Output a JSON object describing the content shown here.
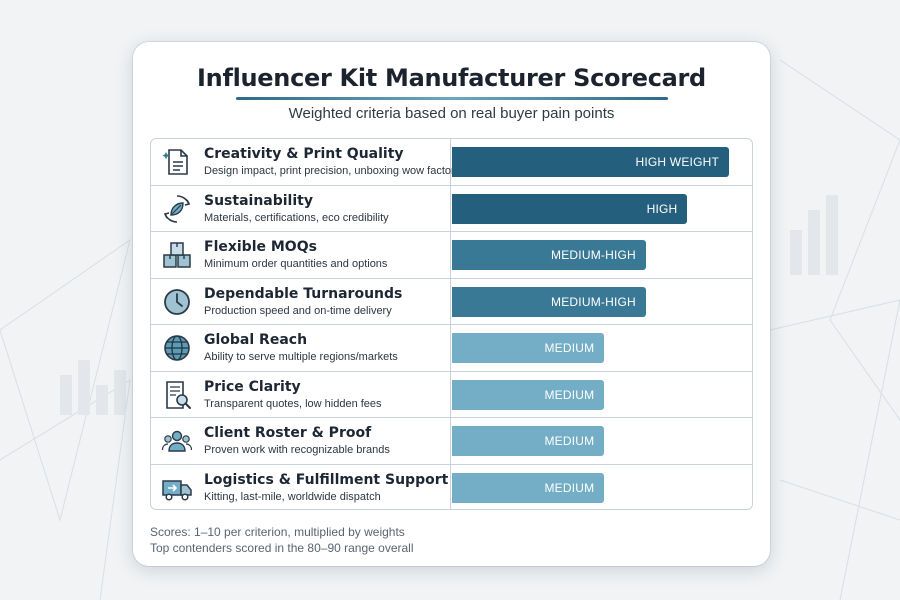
{
  "title": "Influencer Kit Manufacturer Scorecard",
  "subtitle": "Weighted criteria based on real buyer pain points",
  "colors": {
    "dark": "#245f7d",
    "mid": "#3a7995",
    "light": "#74aec6",
    "grid": "#c9d2da"
  },
  "chart_data": {
    "type": "bar",
    "orientation": "horizontal",
    "categories": [
      "Creativity & Print Quality",
      "Sustainability",
      "Flexible MOQs",
      "Dependable Turnarounds",
      "Global Reach",
      "Price Clarity",
      "Client Roster & Proof",
      "Logistics & Fulfillment Support"
    ],
    "descriptions": [
      "Design impact, print precision, unboxing wow factor",
      "Materials, certifications, eco credibility",
      "Minimum order quantities and options",
      "Production speed and on-time delivery",
      "Ability to serve multiple regions/markets",
      "Transparent quotes, low hidden fees",
      "Proven work with recognizable brands",
      "Kitting, last-mile, worldwide dispatch"
    ],
    "icons": [
      "document-sparkle-icon",
      "recycle-leaf-icon",
      "boxes-icon",
      "clock-icon",
      "globe-icon",
      "invoice-magnifier-icon",
      "people-group-icon",
      "delivery-truck-icon"
    ],
    "values": [
      1.0,
      0.85,
      0.7,
      0.7,
      0.55,
      0.55,
      0.55,
      0.55
    ],
    "data_labels": [
      "HIGH WEIGHT",
      "HIGH",
      "MEDIUM-HIGH",
      "MEDIUM-HIGH",
      "MEDIUM",
      "MEDIUM",
      "MEDIUM",
      "MEDIUM"
    ],
    "tiers": [
      "dark",
      "dark",
      "mid",
      "mid",
      "light",
      "light",
      "light",
      "light"
    ],
    "xlim": [
      0,
      1
    ],
    "grid": false
  },
  "footnotes": [
    "Scores: 1–10 per criterion, multiplied by weights",
    "Top contenders scored in the 80–90 range overall"
  ]
}
